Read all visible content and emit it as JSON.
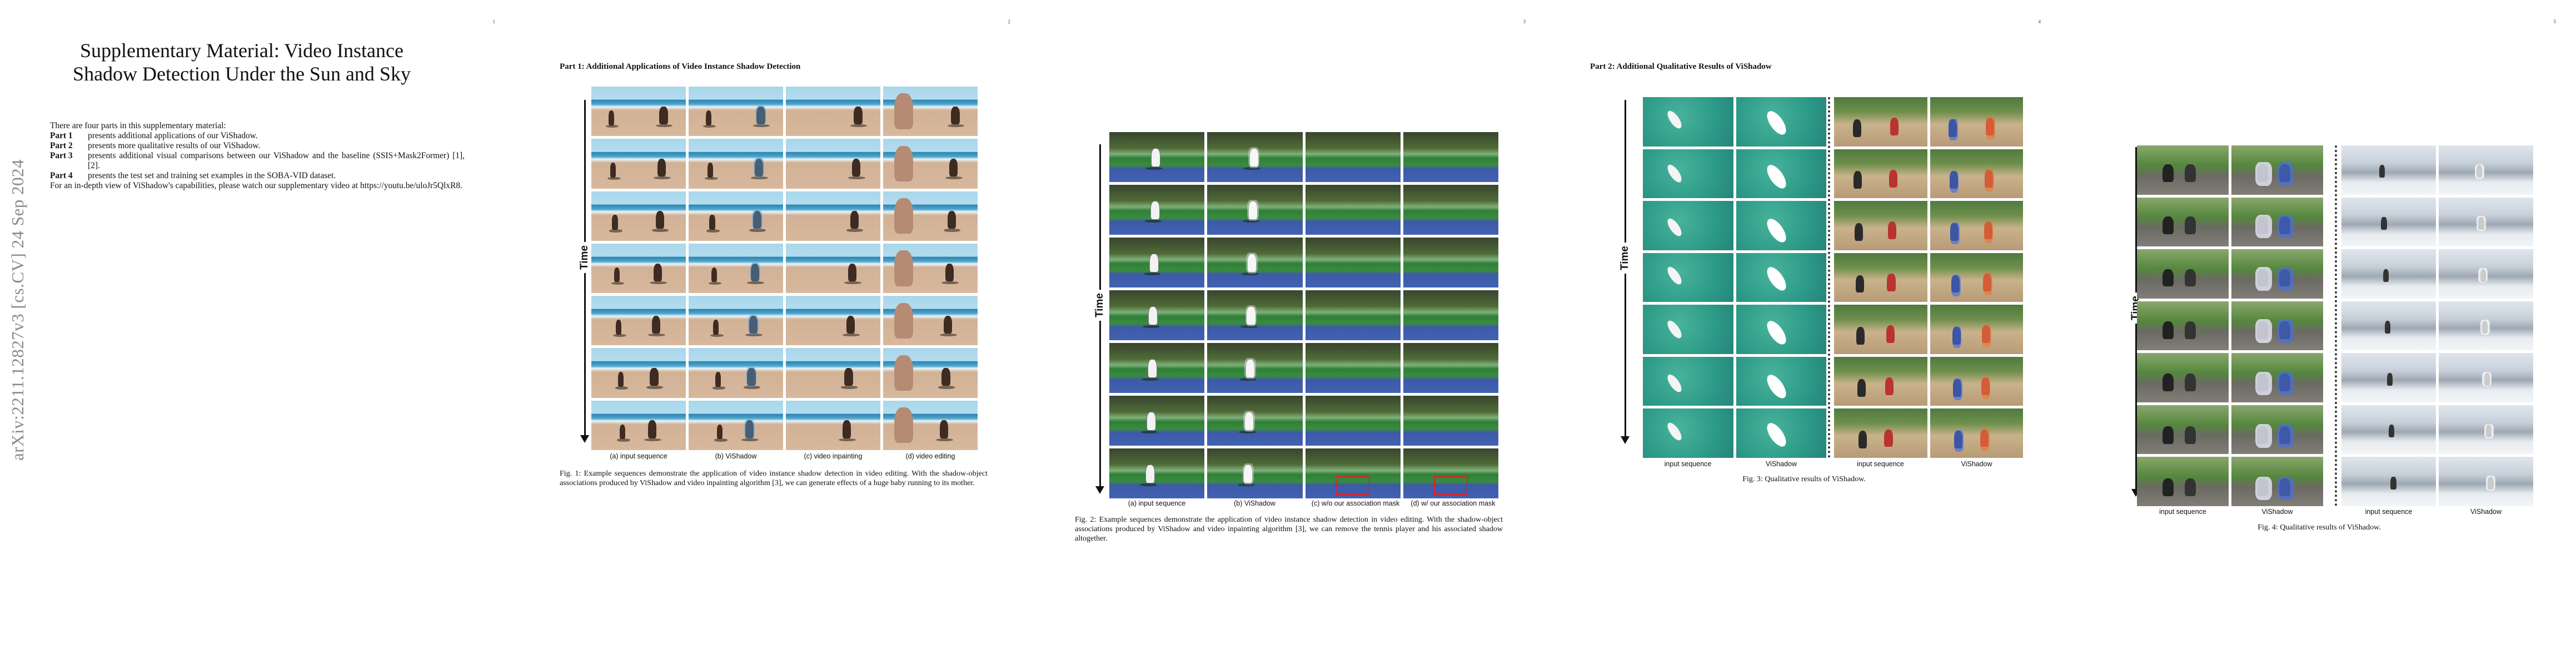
{
  "pages": {
    "page1": {
      "number": "1",
      "arxiv_stamp": "arXiv:2211.12827v3  [cs.CV]  24 Sep 2024",
      "title": "Supplementary Material: Video Instance Shadow Detection Under the Sun and Sky",
      "intro": "There are four parts in this supplementary material:",
      "parts": [
        {
          "label": "Part 1",
          "text": "presents additional applications of our ViShadow."
        },
        {
          "label": "Part 2",
          "text": "presents more qualitative results of our ViShadow."
        },
        {
          "label": "Part 3",
          "text": "presents additional visual comparisons between our ViShadow and the baseline (SSIS+Mask2Former) [1], [2]."
        },
        {
          "label": "Part 4",
          "text": "presents the test set and training set examples in the SOBA-VID dataset."
        }
      ],
      "video_note": "For an in-depth view of ViShadow's capabilities, please watch our supplementary video at https://youtu.be/uloJr5QlxR8."
    },
    "page2": {
      "number": "2",
      "section": "Part 1: Additional Applications of Video Instance Shadow Detection",
      "time_label": "Time",
      "columns": [
        "(a) input sequence",
        "(b) ViShadow",
        "(c) video inpainting",
        "(d) video editing"
      ],
      "caption": "Fig. 1: Example sequences demonstrate the application of video instance shadow detection in video editing. With the shadow-object associations produced by ViShadow and video inpainting algorithm [3], we can generate effects of a huge baby running to its mother."
    },
    "page3": {
      "number": "3",
      "time_label": "Time",
      "columns": [
        "(a) input sequence",
        "(b) ViShadow",
        "(c) w/o our association mask",
        "(d) w/ our association mask"
      ],
      "caption": "Fig. 2: Example sequences demonstrate the application of video instance shadow detection in video editing. With the shadow-object associations produced by ViShadow and video inpainting algorithm [3], we can remove the tennis player and his associated shadow altogether."
    },
    "page4": {
      "number": "4",
      "section": "Part 2: Additional Qualitative Results of ViShadow",
      "time_label": "Time",
      "columns": [
        "input sequence",
        "ViShadow",
        "input sequence",
        "ViShadow"
      ],
      "caption": "Fig. 3: Qualitative results of ViShadow."
    },
    "page5": {
      "number": "5",
      "time_label": "Time",
      "columns": [
        "input sequence",
        "ViShadow",
        "input sequence",
        "ViShadow"
      ],
      "caption": "Fig. 4: Qualitative results of ViShadow."
    }
  },
  "colors": {
    "mask_blue": "#4a6ee6",
    "red_box": "#e21f1f",
    "text": "#111111",
    "stamp_gray": "#8a8a8a"
  }
}
